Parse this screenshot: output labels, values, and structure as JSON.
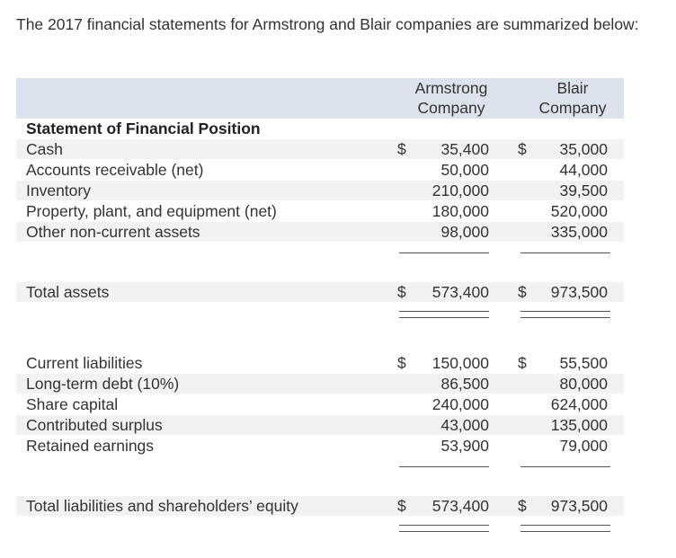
{
  "intro": "The 2017 financial statements for Armstrong and Blair companies are summarized below:",
  "header": {
    "col_a": [
      "Armstrong",
      "Company"
    ],
    "col_b": [
      "Blair",
      "Company"
    ]
  },
  "section_title": "Statement of Financial Position",
  "assets": [
    {
      "label": "Cash",
      "a_dollar": "$",
      "a": "35,400",
      "b_dollar": "$",
      "b": "35,000"
    },
    {
      "label": "Accounts receivable (net)",
      "a_dollar": "",
      "a": "50,000",
      "b_dollar": "",
      "b": "44,000"
    },
    {
      "label": "Inventory",
      "a_dollar": "",
      "a": "210,000",
      "b_dollar": "",
      "b": "39,500"
    },
    {
      "label": "Property, plant, and equipment (net)",
      "a_dollar": "",
      "a": "180,000",
      "b_dollar": "",
      "b": "520,000"
    },
    {
      "label": "Other non-current assets",
      "a_dollar": "",
      "a": "98,000",
      "b_dollar": "",
      "b": "335,000"
    }
  ],
  "total_assets": {
    "label": "Total assets",
    "a_dollar": "$",
    "a": "573,400",
    "b_dollar": "$",
    "b": "973,500"
  },
  "liabilities": [
    {
      "label": "Current liabilities",
      "a_dollar": "$",
      "a": "150,000",
      "b_dollar": "$",
      "b": "55,500"
    },
    {
      "label": "Long-term debt (10%)",
      "a_dollar": "",
      "a": "86,500",
      "b_dollar": "",
      "b": "80,000"
    },
    {
      "label": "Share capital",
      "a_dollar": "",
      "a": "240,000",
      "b_dollar": "",
      "b": "624,000"
    },
    {
      "label": "Contributed surplus",
      "a_dollar": "",
      "a": "43,000",
      "b_dollar": "",
      "b": "135,000"
    },
    {
      "label": "Retained earnings",
      "a_dollar": "",
      "a": "53,900",
      "b_dollar": "",
      "b": "79,000"
    }
  ],
  "total_liabilities": {
    "label": "Total liabilities and shareholders’ equity",
    "a_dollar": "$",
    "a": "573,400",
    "b_dollar": "$",
    "b": "973,500"
  }
}
